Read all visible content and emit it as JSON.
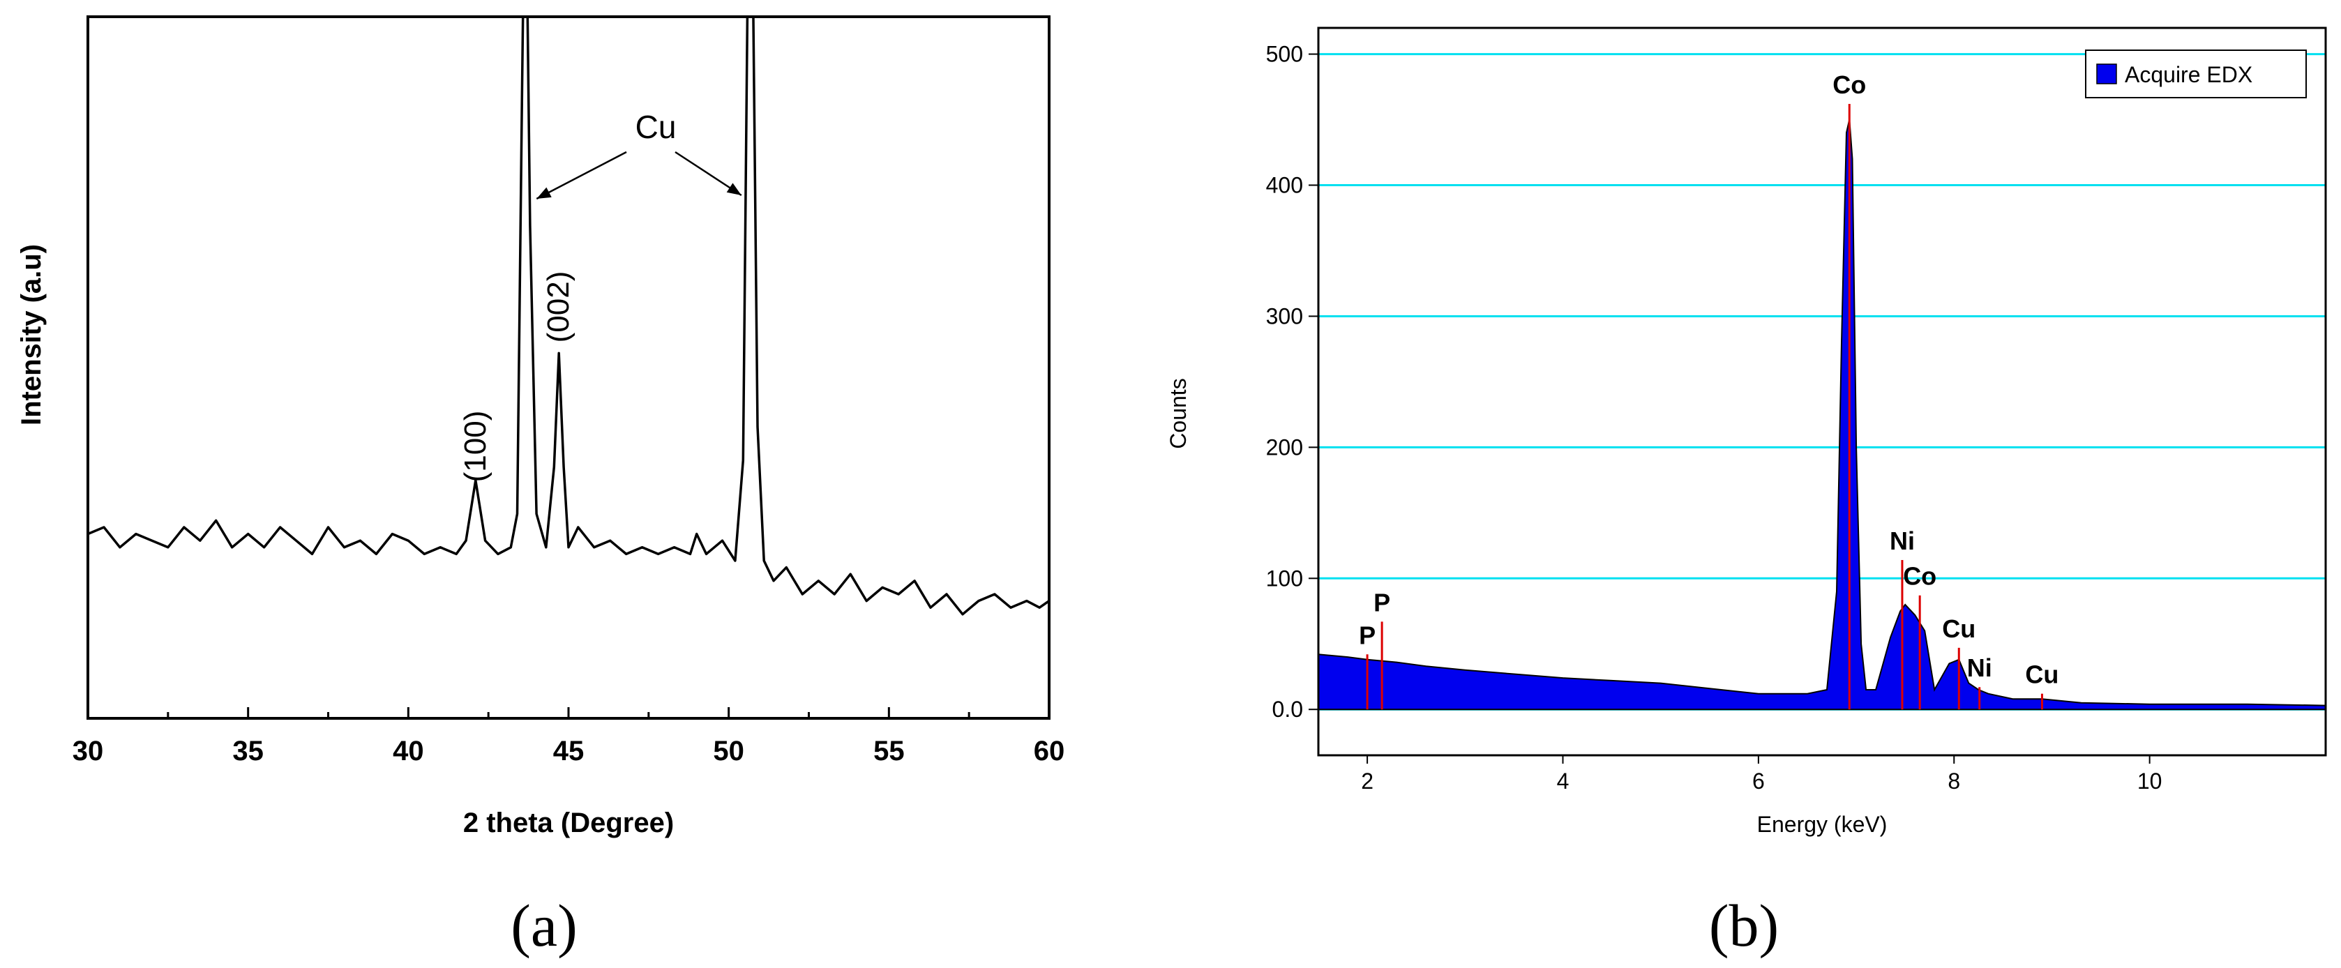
{
  "chart_data": [
    {
      "panel": "(a)",
      "type": "line",
      "xlabel": "2 theta (Degree)",
      "ylabel": "Intensity (a.u)",
      "xlim": [
        30,
        60
      ],
      "x_ticks": [
        "30",
        "35",
        "40",
        "45",
        "50",
        "55",
        "60"
      ],
      "y_ticks_labeled": false,
      "series": [
        {
          "x": [
            30.0,
            30.5,
            31.0,
            31.5,
            32.0,
            32.5,
            33.0,
            33.5,
            34.0,
            34.5,
            35.0,
            35.5,
            36.0,
            36.5,
            37.0,
            37.5,
            38.0,
            38.5,
            39.0,
            39.5,
            40.0,
            40.5,
            41.0,
            41.5,
            41.8,
            42.1,
            42.4,
            42.8,
            43.2,
            43.4,
            43.55,
            43.6,
            43.7,
            43.8,
            44.0,
            44.3,
            44.55,
            44.7,
            44.85,
            45.0,
            45.3,
            45.8,
            46.3,
            46.8,
            47.3,
            47.8,
            48.3,
            48.8,
            49.0,
            49.3,
            49.8,
            50.2,
            50.45,
            50.6,
            50.75,
            50.9,
            51.1,
            51.4,
            51.8,
            52.3,
            52.8,
            53.3,
            53.8,
            54.3,
            54.8,
            55.3,
            55.8,
            56.3,
            56.8,
            57.3,
            57.8,
            58.3,
            58.8,
            59.3,
            59.7,
            60.0
          ],
          "y": [
            14,
            15,
            12,
            14,
            13,
            12,
            15,
            13,
            16,
            12,
            14,
            12,
            15,
            13,
            11,
            15,
            12,
            13,
            11,
            14,
            13,
            11,
            12,
            11,
            13,
            22,
            13,
            11,
            12,
            17,
            80,
            100,
            100,
            60,
            17,
            12,
            24,
            41,
            24,
            12,
            15,
            12,
            13,
            11,
            12,
            11,
            12,
            11,
            14,
            11,
            13,
            10,
            25,
            100,
            100,
            30,
            10,
            7,
            9,
            5,
            7,
            5,
            8,
            4,
            6,
            5,
            7,
            3,
            5,
            2,
            4,
            5,
            3,
            4,
            3,
            4
          ]
        }
      ],
      "annotations": [
        {
          "text": "Cu",
          "points_to_x": [
            43.7,
            50.7
          ]
        },
        {
          "text": "(100)",
          "x": 42.1
        },
        {
          "text": "(002)",
          "x": 44.7
        }
      ]
    },
    {
      "panel": "(b)",
      "type": "area",
      "xlabel": "Energy (keV)",
      "ylabel": "Counts",
      "xlim": [
        1.5,
        11.8
      ],
      "ylim": [
        -35,
        520
      ],
      "x_ticks": [
        "2",
        "4",
        "6",
        "8",
        "10"
      ],
      "y_ticks": [
        "0.0",
        "100",
        "200",
        "300",
        "400",
        "500"
      ],
      "grid": true,
      "legend": {
        "position": "top-right",
        "label": "Acquire EDX"
      },
      "series": [
        {
          "name": "Acquire EDX",
          "color": "#0000ee",
          "x": [
            1.5,
            1.8,
            2.0,
            2.3,
            2.6,
            3.0,
            3.5,
            4.0,
            4.5,
            5.0,
            5.5,
            6.0,
            6.5,
            6.7,
            6.8,
            6.85,
            6.9,
            6.93,
            6.96,
            7.0,
            7.05,
            7.1,
            7.2,
            7.35,
            7.45,
            7.5,
            7.6,
            7.7,
            7.8,
            7.95,
            8.05,
            8.15,
            8.25,
            8.35,
            8.6,
            8.9,
            9.3,
            10.0,
            11.0,
            11.8
          ],
          "y": [
            42,
            40,
            38,
            36,
            33,
            30,
            27,
            24,
            22,
            20,
            16,
            12,
            12,
            15,
            90,
            280,
            440,
            450,
            420,
            200,
            50,
            15,
            15,
            55,
            75,
            80,
            72,
            60,
            15,
            35,
            38,
            20,
            15,
            12,
            8,
            8,
            5,
            4,
            4,
            3
          ]
        }
      ],
      "peak_labels": [
        {
          "text": "P",
          "x": 2.0,
          "y": 50
        },
        {
          "text": "P",
          "x": 2.15,
          "y": 75
        },
        {
          "text": "Co",
          "x": 6.93,
          "y": 470
        },
        {
          "text": "Ni",
          "x": 7.47,
          "y": 122
        },
        {
          "text": "Co",
          "x": 7.65,
          "y": 95
        },
        {
          "text": "Cu",
          "x": 8.05,
          "y": 55
        },
        {
          "text": "Ni",
          "x": 8.26,
          "y": 25
        },
        {
          "text": "Cu",
          "x": 8.9,
          "y": 20
        }
      ],
      "marker_lines_color": "#dd0000",
      "marker_lines_x": [
        2.0,
        2.15,
        6.93,
        7.47,
        7.65,
        8.05,
        8.26,
        8.9
      ]
    }
  ]
}
